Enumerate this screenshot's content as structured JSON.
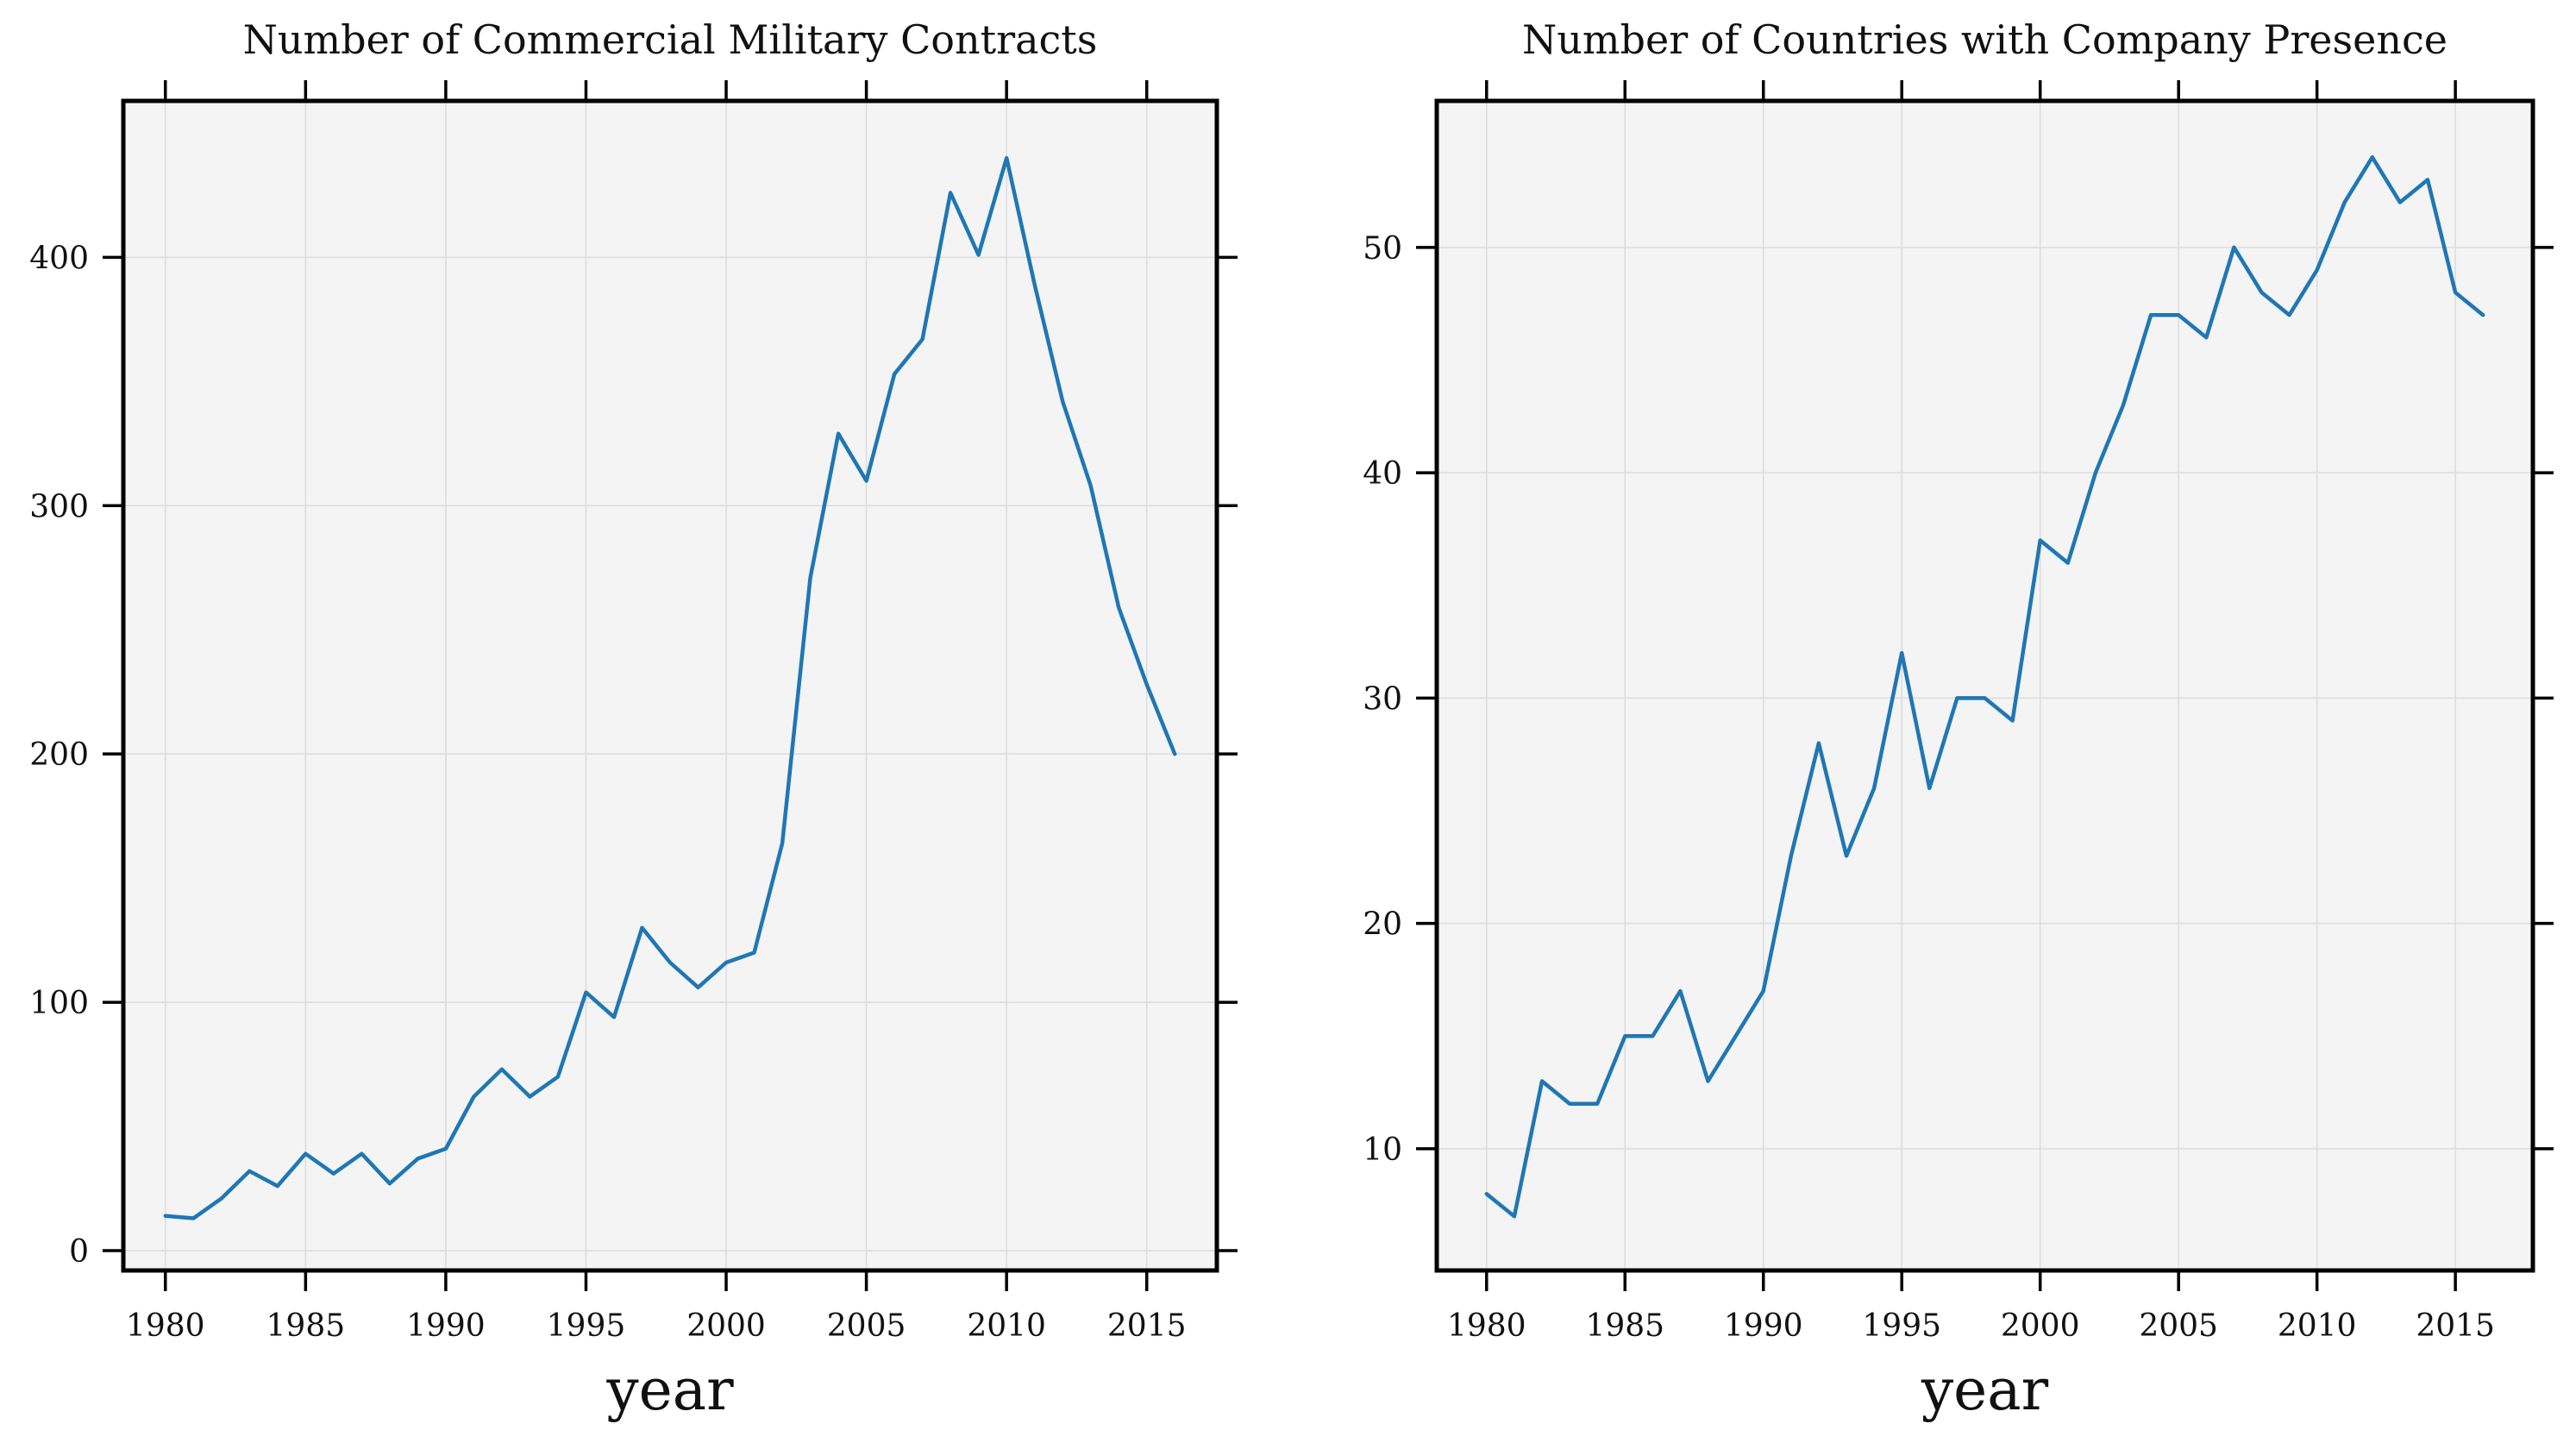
{
  "chart_data": [
    {
      "type": "line",
      "title": "Number of Commercial Military Contracts",
      "xlabel": "year",
      "ylabel": "",
      "xlim": [
        1978.5,
        2017.5
      ],
      "ylim": [
        -8,
        463
      ],
      "xticks": [
        1980,
        1985,
        1990,
        1995,
        2000,
        2005,
        2010,
        2015
      ],
      "yticks": [
        0,
        100,
        200,
        300,
        400
      ],
      "grid": true,
      "x": [
        1980,
        1981,
        1982,
        1983,
        1984,
        1985,
        1986,
        1987,
        1988,
        1989,
        1990,
        1991,
        1992,
        1993,
        1994,
        1995,
        1996,
        1997,
        1998,
        1999,
        2000,
        2001,
        2002,
        2003,
        2004,
        2005,
        2006,
        2007,
        2008,
        2009,
        2010,
        2011,
        2012,
        2013,
        2014,
        2015,
        2016
      ],
      "series": [
        {
          "color": "#1f77b4",
          "values": [
            14,
            13,
            21,
            32,
            26,
            39,
            31,
            39,
            27,
            37,
            41,
            62,
            73,
            62,
            70,
            104,
            94,
            130,
            116,
            106,
            116,
            120,
            164,
            271,
            329,
            310,
            353,
            367,
            426,
            401,
            440,
            389,
            342,
            308,
            259,
            228,
            200
          ]
        }
      ]
    },
    {
      "type": "line",
      "title": "Number of Countries with Company Presence",
      "xlabel": "year",
      "ylabel": "",
      "xlim": [
        1978.2,
        2017.8
      ],
      "ylim": [
        4.6,
        56.5
      ],
      "xticks": [
        1980,
        1985,
        1990,
        1995,
        2000,
        2005,
        2010,
        2015
      ],
      "yticks": [
        10,
        20,
        30,
        40,
        50
      ],
      "grid": true,
      "x": [
        1980,
        1981,
        1982,
        1983,
        1984,
        1985,
        1986,
        1987,
        1988,
        1989,
        1990,
        1991,
        1992,
        1993,
        1994,
        1995,
        1996,
        1997,
        1998,
        1999,
        2000,
        2001,
        2002,
        2003,
        2004,
        2005,
        2006,
        2007,
        2008,
        2009,
        2010,
        2011,
        2012,
        2013,
        2014,
        2015,
        2016
      ],
      "series": [
        {
          "color": "#1f77b4",
          "values": [
            8,
            7,
            13,
            12,
            12,
            15,
            15,
            17,
            13,
            15,
            17,
            23,
            28,
            23,
            26,
            32,
            26,
            30,
            30,
            29,
            37,
            36,
            40,
            43,
            47,
            47,
            46,
            50,
            48,
            47,
            49,
            52,
            54,
            52,
            53,
            48,
            47
          ]
        }
      ]
    }
  ]
}
